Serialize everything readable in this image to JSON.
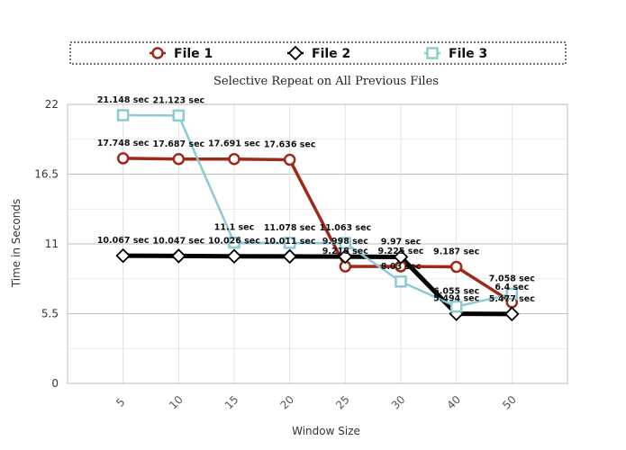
{
  "chart_data": {
    "type": "line",
    "title": "Selective Repeat on All Previous Files",
    "xlabel": "Window Size",
    "ylabel": "Time in Seconds",
    "categories": [
      "5",
      "10",
      "15",
      "20",
      "25",
      "30",
      "40",
      "50"
    ],
    "ylim": [
      0,
      22
    ],
    "yticks": [
      "0",
      "5.5",
      "11",
      "16.5",
      "22"
    ],
    "grid": true,
    "legend_position": "top",
    "series": [
      {
        "name": "File 1",
        "color": "#a02817",
        "marker": "circle",
        "values": [
          17.748,
          17.687,
          17.691,
          17.636,
          9.218,
          9.225,
          9.187,
          6.4
        ],
        "labels": [
          "17.748 sec",
          "17.687 sec",
          "17.691 sec",
          "17.636 sec",
          "9.218 sec",
          "9.225 sec",
          "9.187 sec",
          "6.4 sec"
        ]
      },
      {
        "name": "File 2",
        "color": "#000000",
        "marker": "diamond",
        "values": [
          10.067,
          10.047,
          10.026,
          10.011,
          9.998,
          9.97,
          5.494,
          5.477
        ],
        "labels": [
          "10.067 sec",
          "10.047 sec",
          "10.026 sec",
          "10.011 sec",
          "9.998 sec",
          "9.97 sec",
          "5.494 sec",
          "5.477 sec"
        ]
      },
      {
        "name": "File 3",
        "color": "#8ccad6",
        "marker": "square",
        "values": [
          21.148,
          21.123,
          11.1,
          11.078,
          11.063,
          8.03,
          6.055,
          7.058
        ],
        "labels": [
          "21.148 sec",
          "21.123 sec",
          "11.1 sec",
          "11.078 sec",
          "11.063 sec",
          "8.03 sec",
          "6.055 sec",
          "7.058 sec"
        ]
      }
    ]
  }
}
